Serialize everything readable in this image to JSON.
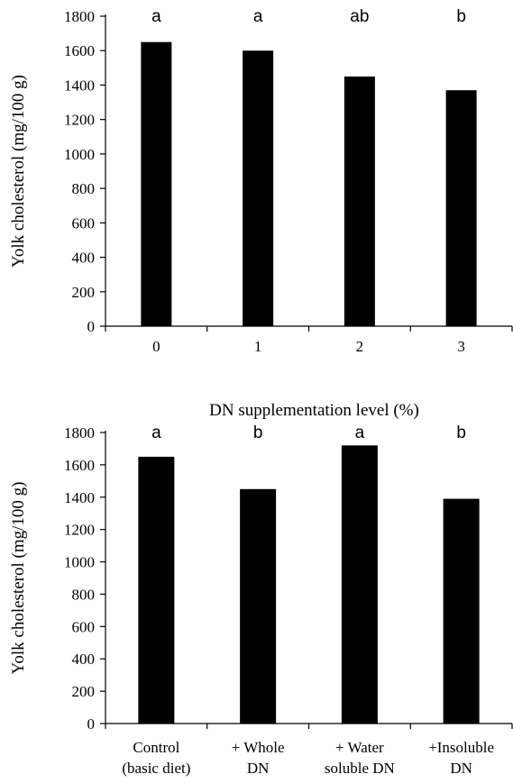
{
  "chart_data": [
    {
      "type": "bar",
      "categories": [
        "0",
        "1",
        "2",
        "3"
      ],
      "values": [
        1650,
        1600,
        1450,
        1370
      ],
      "significance": [
        "a",
        "a",
        "ab",
        "b"
      ],
      "title": "",
      "xlabel": "DN supplementation  level (%)",
      "ylabel": "Yolk cholesterol (mg/100 g)",
      "ylim": [
        0,
        1800
      ],
      "yticks": [
        "0",
        "200",
        "400",
        "600",
        "800",
        "1000",
        "1200",
        "1400",
        "1600",
        "1800"
      ],
      "grid": false,
      "bar_color": "#000000"
    },
    {
      "type": "bar",
      "categories": [
        [
          "Control",
          "(basic diet)"
        ],
        [
          "+ Whole",
          "DN"
        ],
        [
          "+ Water",
          "soluble DN"
        ],
        [
          "+Insoluble",
          "DN"
        ]
      ],
      "values": [
        1650,
        1450,
        1720,
        1390
      ],
      "significance": [
        "a",
        "b",
        "a",
        "b"
      ],
      "title": "",
      "xlabel": "",
      "ylabel": "Yolk cholesterol (mg/100 g)",
      "ylim": [
        0,
        1800
      ],
      "yticks": [
        "0",
        "200",
        "400",
        "600",
        "800",
        "1000",
        "1200",
        "1400",
        "1600",
        "1800"
      ],
      "grid": false,
      "bar_color": "#000000"
    }
  ]
}
